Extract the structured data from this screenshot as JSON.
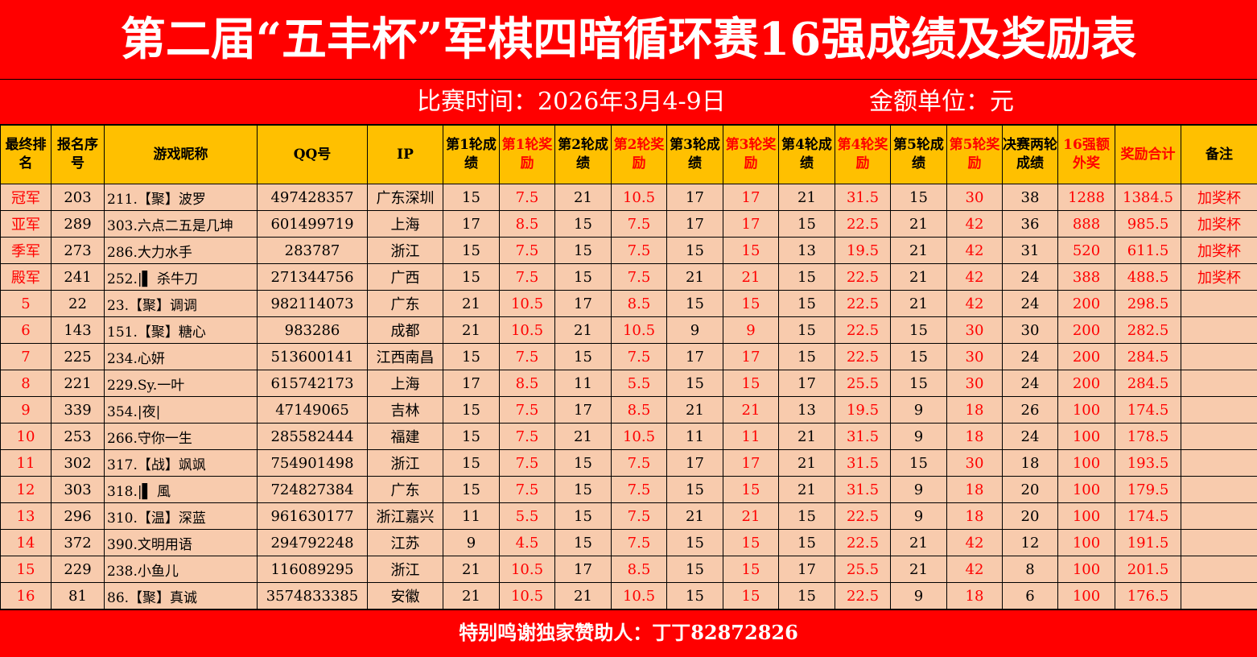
{
  "title": "第二届“五丰杯”军棋四暗循环赛16强成绩及奖励表",
  "subtitle": {
    "time": "比赛时间：2026年3月4-9日",
    "unit": "金额单位：元"
  },
  "headers": [
    "最终排名",
    "报名序号",
    "游戏昵称",
    "QQ号",
    "IP",
    "第1轮成绩",
    "第1轮奖励",
    "第2轮成绩",
    "第2轮奖励",
    "第3轮成绩",
    "第3轮奖励",
    "第4轮成绩",
    "第4轮奖励",
    "第5轮成绩",
    "第5轮奖励",
    "决赛两轮成绩",
    "16强额外奖",
    "奖励合计",
    "备注"
  ],
  "colors": {
    "red": "#ff0000",
    "header_bg": "#ffc000",
    "row_bg": "#f8cbad",
    "banner_bg": "#ff0000"
  },
  "rows": [
    [
      "冠军",
      "203",
      "211.【聚】波罗",
      "497428357",
      "广东深圳",
      "15",
      "7.5",
      "21",
      "10.5",
      "17",
      "17",
      "21",
      "31.5",
      "15",
      "30",
      "38",
      "1288",
      "1384.5",
      "加奖杯"
    ],
    [
      "亚军",
      "289",
      "303.六点二五是几坤",
      "601499719",
      "上海",
      "17",
      "8.5",
      "15",
      "7.5",
      "17",
      "17",
      "15",
      "22.5",
      "21",
      "42",
      "36",
      "888",
      "985.5",
      "加奖杯"
    ],
    [
      "季军",
      "273",
      "286.大力水手",
      "283787",
      "浙江",
      "15",
      "7.5",
      "15",
      "7.5",
      "15",
      "15",
      "13",
      "19.5",
      "21",
      "42",
      "31",
      "520",
      "611.5",
      "加奖杯"
    ],
    [
      "殿军",
      "241",
      "252.|▌ 杀牛刀",
      "271344756",
      "广西",
      "15",
      "7.5",
      "15",
      "7.5",
      "21",
      "21",
      "15",
      "22.5",
      "21",
      "42",
      "24",
      "388",
      "488.5",
      "加奖杯"
    ],
    [
      "5",
      "22",
      "23.【聚】调调",
      "982114073",
      "广东",
      "21",
      "10.5",
      "17",
      "8.5",
      "15",
      "15",
      "15",
      "22.5",
      "21",
      "42",
      "24",
      "200",
      "298.5",
      ""
    ],
    [
      "6",
      "143",
      "151.【聚】糖心",
      "983286",
      "成都",
      "21",
      "10.5",
      "21",
      "10.5",
      "9",
      "9",
      "15",
      "22.5",
      "15",
      "30",
      "30",
      "200",
      "282.5",
      ""
    ],
    [
      "7",
      "225",
      "234.心妍",
      "513600141",
      "江西南昌",
      "15",
      "7.5",
      "15",
      "7.5",
      "17",
      "17",
      "15",
      "22.5",
      "15",
      "30",
      "24",
      "200",
      "284.5",
      ""
    ],
    [
      "8",
      "221",
      "229.Sy.一叶",
      "615742173",
      "上海",
      "17",
      "8.5",
      "11",
      "5.5",
      "15",
      "15",
      "17",
      "25.5",
      "15",
      "30",
      "24",
      "200",
      "284.5",
      ""
    ],
    [
      "9",
      "339",
      "354.|夜|",
      "47149065",
      "吉林",
      "15",
      "7.5",
      "17",
      "8.5",
      "21",
      "21",
      "13",
      "19.5",
      "9",
      "18",
      "26",
      "100",
      "174.5",
      ""
    ],
    [
      "10",
      "253",
      "266.守你一生",
      "285582444",
      "福建",
      "15",
      "7.5",
      "21",
      "10.5",
      "11",
      "11",
      "21",
      "31.5",
      "9",
      "18",
      "24",
      "100",
      "178.5",
      ""
    ],
    [
      "11",
      "302",
      "317.【战】飒飒",
      "754901498",
      "浙江",
      "15",
      "7.5",
      "15",
      "7.5",
      "17",
      "17",
      "21",
      "31.5",
      "15",
      "30",
      "18",
      "100",
      "193.5",
      ""
    ],
    [
      "12",
      "303",
      "318.|▌ 風",
      "724827384",
      "广东",
      "15",
      "7.5",
      "15",
      "7.5",
      "15",
      "15",
      "21",
      "31.5",
      "9",
      "18",
      "20",
      "100",
      "179.5",
      ""
    ],
    [
      "13",
      "296",
      "310.【温】深蓝",
      "961630177",
      "浙江嘉兴",
      "11",
      "5.5",
      "15",
      "7.5",
      "21",
      "21",
      "15",
      "22.5",
      "9",
      "18",
      "20",
      "100",
      "174.5",
      ""
    ],
    [
      "14",
      "372",
      "390.文明用语",
      "294792248",
      "江苏",
      "9",
      "4.5",
      "15",
      "7.5",
      "15",
      "15",
      "15",
      "22.5",
      "21",
      "42",
      "12",
      "100",
      "191.5",
      ""
    ],
    [
      "15",
      "229",
      "238.小鱼儿",
      "116089295",
      "浙江",
      "21",
      "10.5",
      "17",
      "8.5",
      "15",
      "15",
      "17",
      "25.5",
      "21",
      "42",
      "8",
      "100",
      "201.5",
      ""
    ],
    [
      "16",
      "81",
      "86.【聚】真诚",
      "3574833385",
      "安徽",
      "21",
      "10.5",
      "21",
      "10.5",
      "15",
      "15",
      "15",
      "22.5",
      "9",
      "18",
      "6",
      "100",
      "176.5",
      ""
    ]
  ],
  "footer": "特别鸣谢独家赞助人：丁丁82872826"
}
